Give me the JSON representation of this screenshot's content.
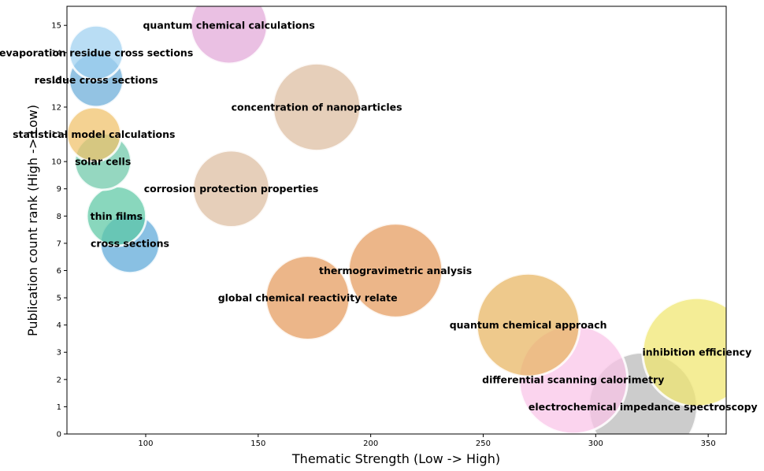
{
  "chart_data": {
    "type": "scatter",
    "title": "",
    "xlabel": "Thematic Strength (Low -> High)",
    "ylabel": "Publication count rank (High -> Low)",
    "xlim": [
      65,
      358
    ],
    "ylim": [
      0,
      15.7
    ],
    "xticks": [
      "100",
      "150",
      "200",
      "250",
      "300",
      "350"
    ],
    "yticks": [
      "0",
      "1",
      "2",
      "3",
      "4",
      "5",
      "6",
      "7",
      "8",
      "9",
      "10",
      "11",
      "12",
      "13",
      "14",
      "15"
    ],
    "grid": false,
    "points": [
      {
        "label": "electrochemical impedance spectroscopy",
        "x": 321,
        "y": 1,
        "size": 1,
        "color": "#b8b8b8"
      },
      {
        "label": "differential scanning calorimetry",
        "x": 290,
        "y": 2,
        "size": 1,
        "color": "#f9c3e8"
      },
      {
        "label": "inhibition efficiency",
        "x": 345,
        "y": 3,
        "size": 1,
        "color": "#f0e66e"
      },
      {
        "label": "quantum chemical approach",
        "x": 270,
        "y": 4,
        "size": 0.9,
        "color": "#e8b460"
      },
      {
        "label": "global chemical reactivity relate",
        "x": 172,
        "y": 5,
        "size": 0.6,
        "color": "#e49a5c"
      },
      {
        "label": "thermogravimetric analysis",
        "x": 211,
        "y": 6,
        "size": 0.75,
        "color": "#e49a5c"
      },
      {
        "label": "cross sections",
        "x": 93,
        "y": 7,
        "size": 0.3,
        "color": "#5ca8d8"
      },
      {
        "label": "thin films",
        "x": 87,
        "y": 8,
        "size": 0.3,
        "color": "#5cc8a4"
      },
      {
        "label": "corrosion protection properties",
        "x": 138,
        "y": 9,
        "size": 0.5,
        "color": "#dcbca0"
      },
      {
        "label": "solar cells",
        "x": 81,
        "y": 10,
        "size": 0.27,
        "color": "#6cc8a8"
      },
      {
        "label": "statistical model calculations",
        "x": 77,
        "y": 11,
        "size": 0.25,
        "color": "#f0c068"
      },
      {
        "label": "concentration of nanoparticles",
        "x": 176,
        "y": 12,
        "size": 0.65,
        "color": "#dcbca0"
      },
      {
        "label": "residue cross sections",
        "x": 78,
        "y": 13,
        "size": 0.25,
        "color": "#6aacd8"
      },
      {
        "label": "evaporation residue cross sections",
        "x": 78,
        "y": 14,
        "size": 0.25,
        "color": "#9ed0f0"
      },
      {
        "label": "quantum chemical calculations",
        "x": 137,
        "y": 15,
        "size": 0.5,
        "color": "#e2a8d8"
      }
    ]
  }
}
